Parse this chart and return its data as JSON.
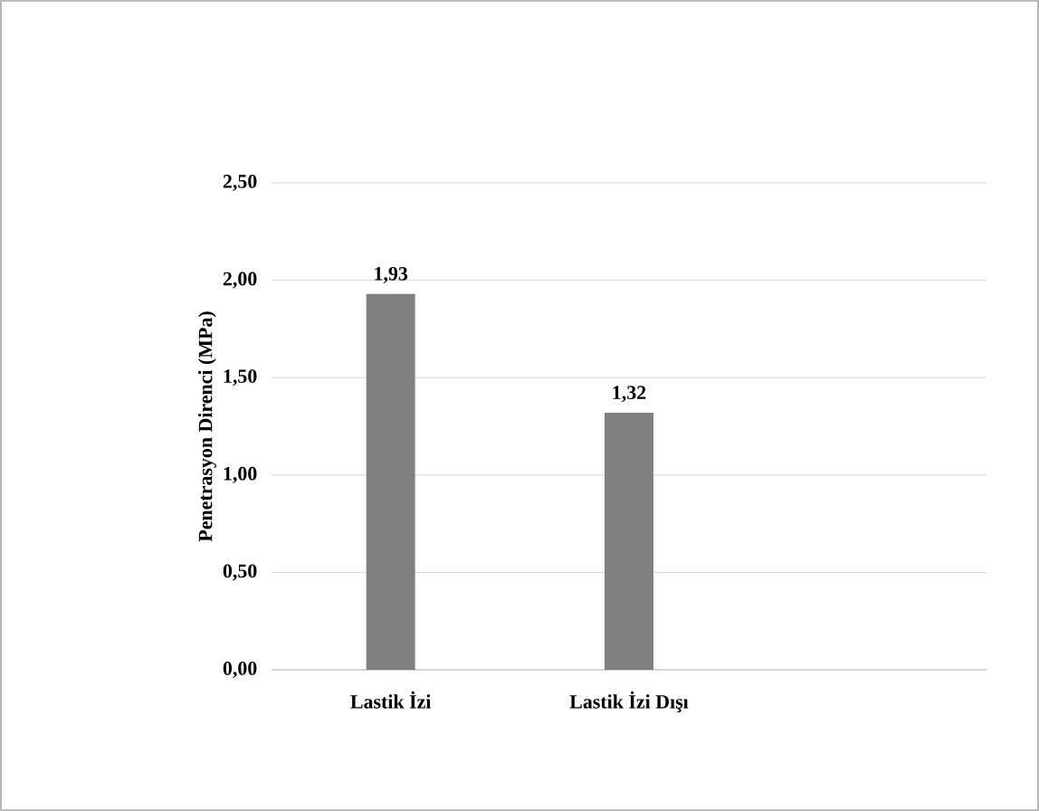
{
  "chart_data": {
    "type": "bar",
    "ylabel": "Penetrasyon Direnci (MPa)",
    "categories": [
      "Lastik İzi",
      "Lastik İzi Dışı"
    ],
    "values": [
      1.93,
      1.32
    ],
    "color": "#808080",
    "value_labels": [
      "1,93",
      "1,32"
    ],
    "ylim": [
      0,
      2.5
    ],
    "yticks": [
      {
        "value": 0,
        "label": "0,00"
      },
      {
        "value": 0.5,
        "label": "0,50"
      },
      {
        "value": 1,
        "label": "1,00"
      },
      {
        "value": 1.5,
        "label": "1,50"
      },
      {
        "value": 2,
        "label": "2,00"
      },
      {
        "value": 2.5,
        "label": "2,50"
      }
    ],
    "grid": "y"
  }
}
